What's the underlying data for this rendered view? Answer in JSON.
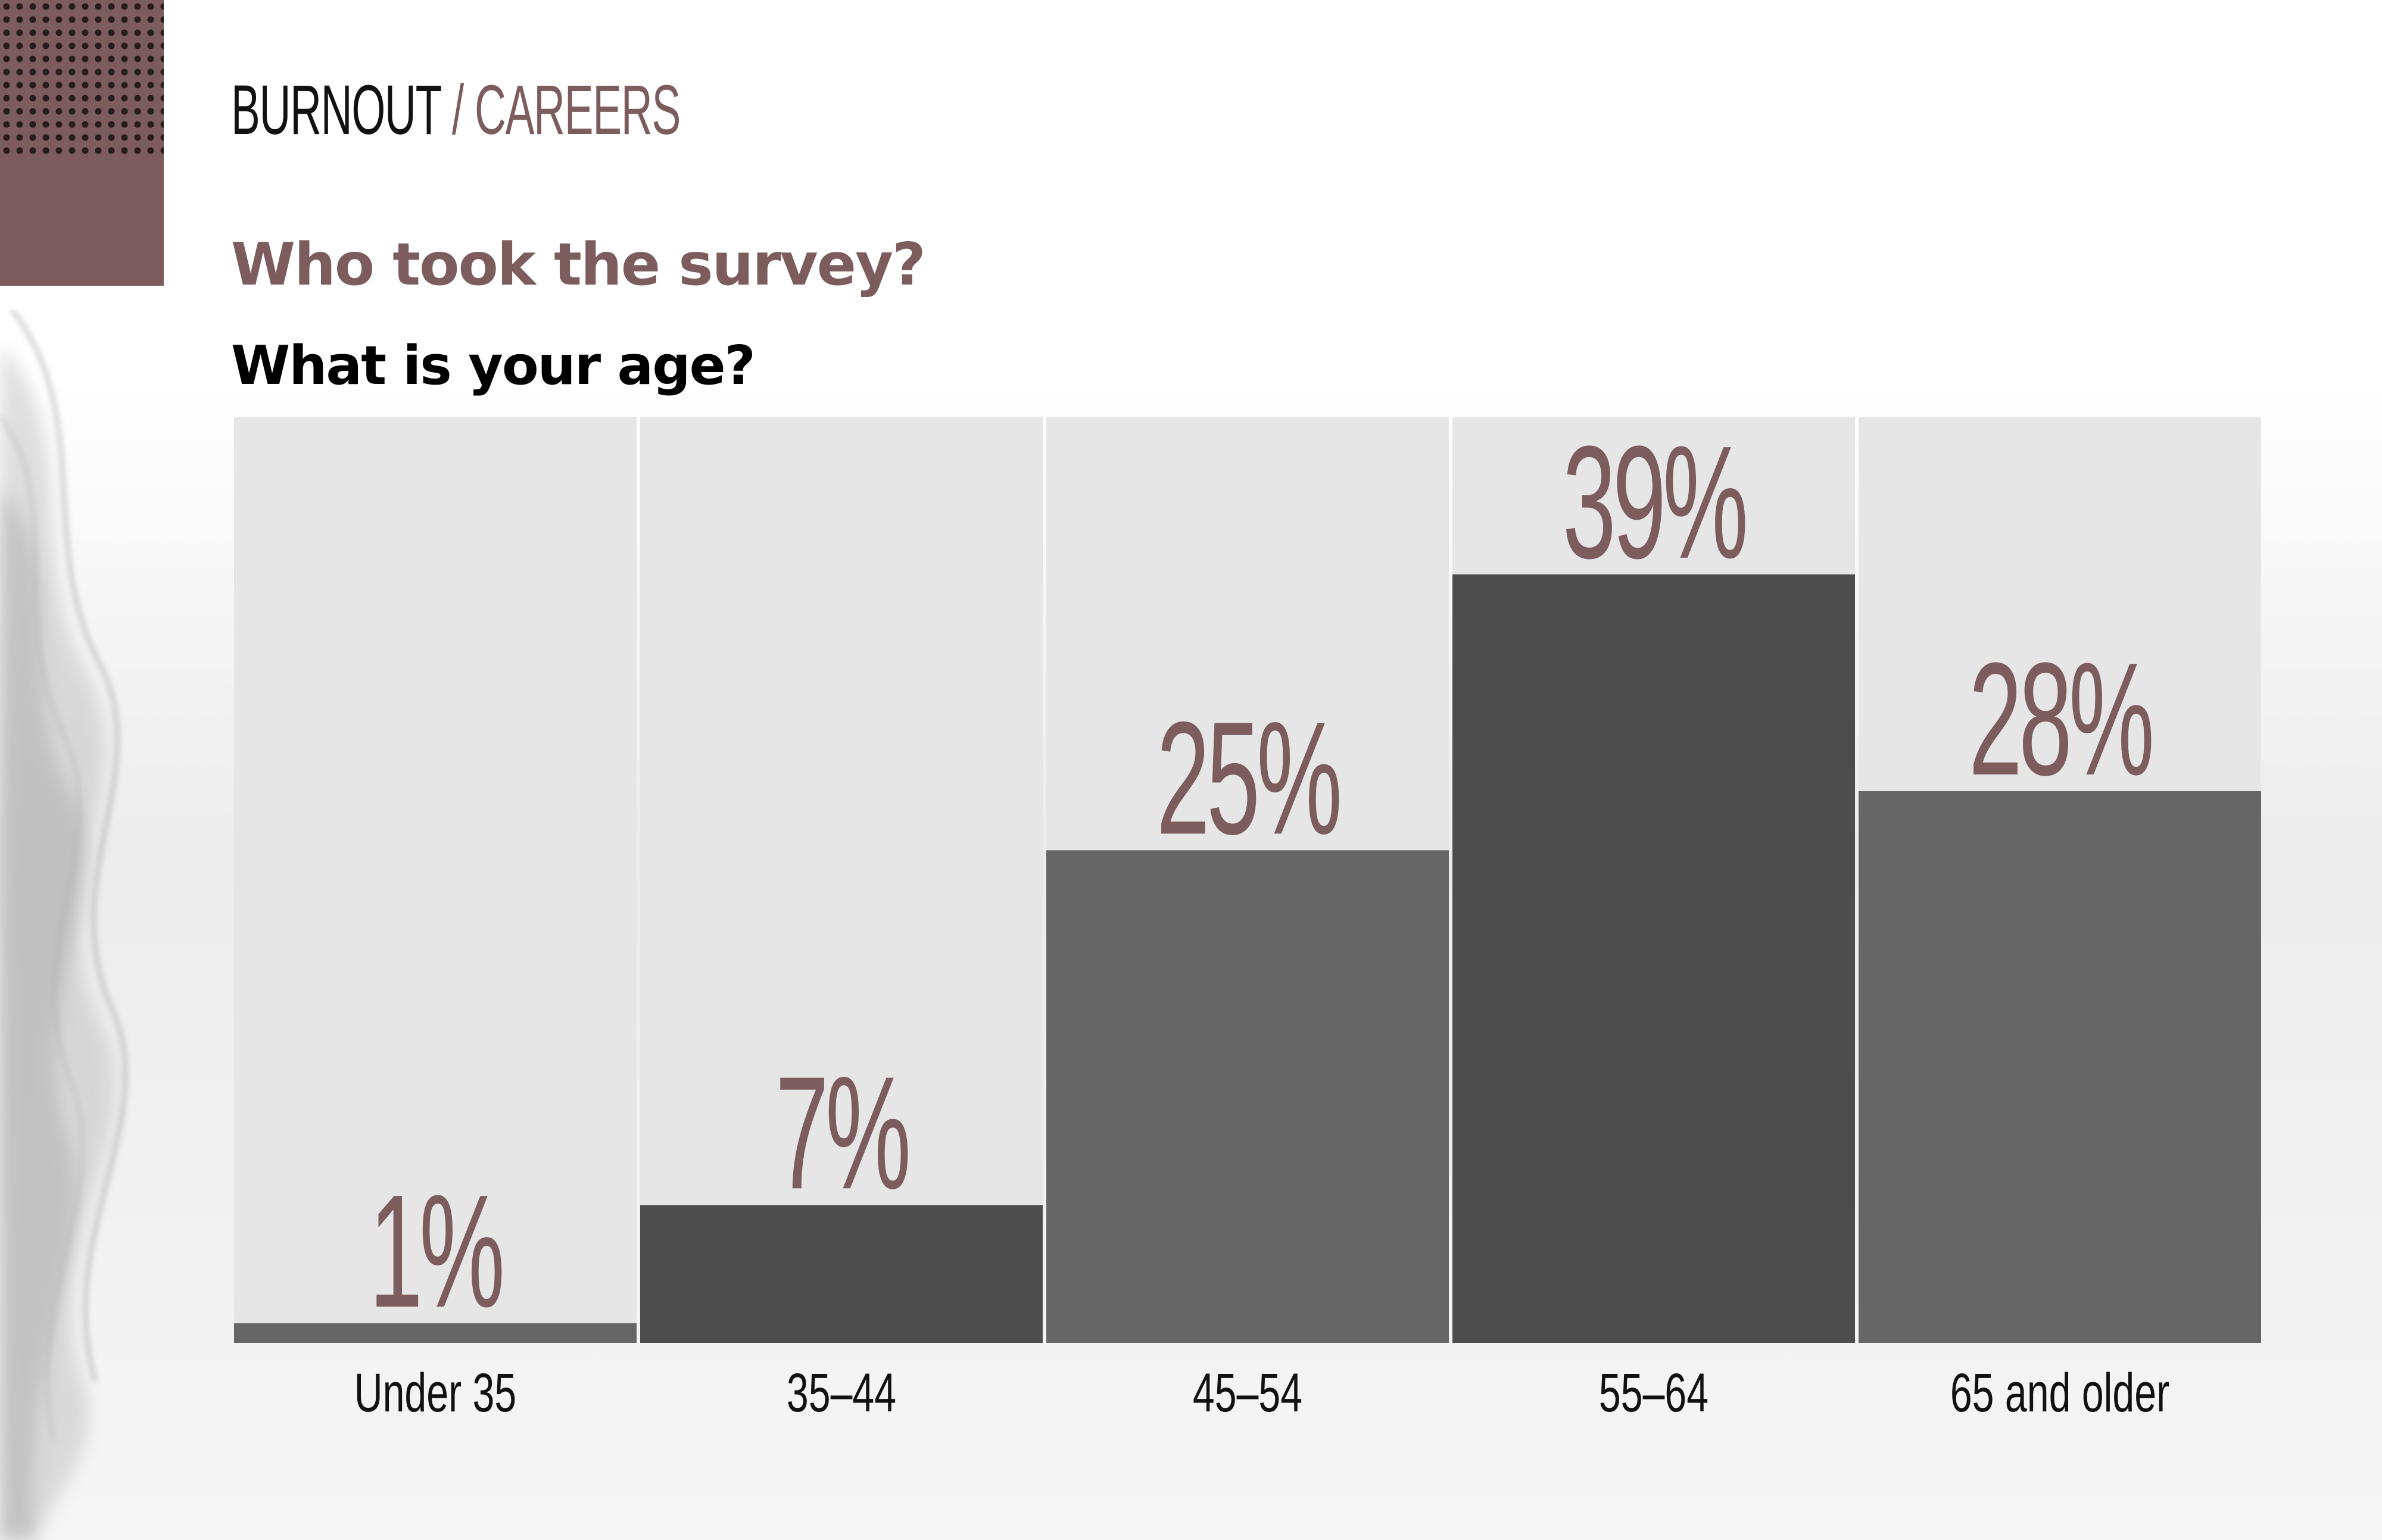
{
  "header": {
    "section": "BURNOUT",
    "separator": "/",
    "category": "CAREERS"
  },
  "title": "Who took the survey?",
  "colors": {
    "accent": "#7d5c5e",
    "bar_dark": "#4d4d4d",
    "bar_medium": "#666666",
    "column_bg": "#e6e6e6"
  },
  "chart_data": {
    "type": "bar",
    "title": "What is your age?",
    "categories": [
      "Under 35",
      "35–44",
      "45–54",
      "55–64",
      "65 and older"
    ],
    "values": [
      1,
      7,
      25,
      39,
      28
    ],
    "data_labels": [
      "1%",
      "7%",
      "25%",
      "39%",
      "28%"
    ],
    "unit": "%",
    "ylim": [
      0,
      47
    ],
    "grid": false,
    "legend": "none"
  }
}
